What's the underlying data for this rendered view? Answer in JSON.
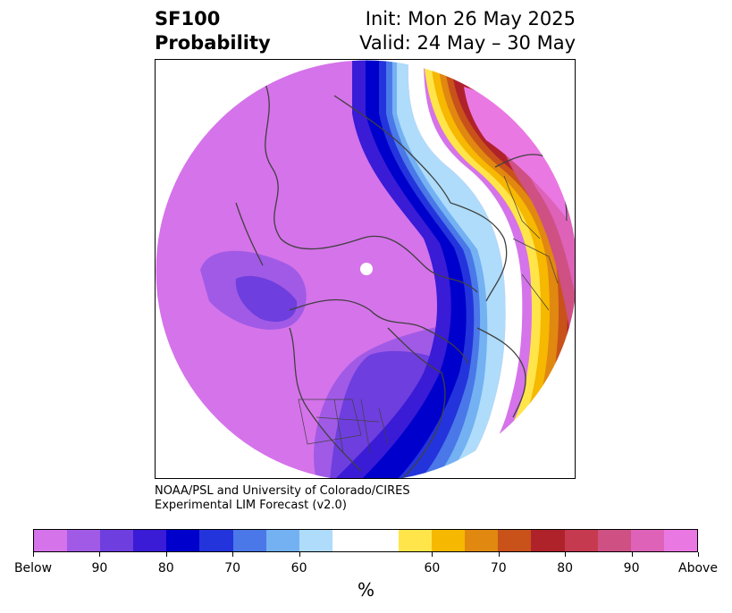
{
  "header": {
    "title_line1": "SF100",
    "title_line2": "Probability",
    "init": "Init: Mon 26 May 2025",
    "valid": "Valid: 24 May – 30 May"
  },
  "credit": {
    "line1": "NOAA/PSL and University of Colorado/CIRES",
    "line2": "Experimental LIM Forecast (v2.0)"
  },
  "colorbar": {
    "colors": [
      "#d573ea",
      "#a05ae6",
      "#6e3ede",
      "#3a1bd6",
      "#0000cc",
      "#2434dc",
      "#4a78e8",
      "#73b1f2",
      "#aedcfa",
      "#ffffff",
      "#ffffff",
      "#ffe54a",
      "#f6b800",
      "#e08810",
      "#c8521a",
      "#b0222a",
      "#c63a50",
      "#cf5083",
      "#de62b8",
      "#ea78e2"
    ],
    "tick_labels": [
      "Below",
      "90",
      "80",
      "70",
      "60",
      "60",
      "70",
      "80",
      "90",
      "Above"
    ],
    "unit": "%"
  },
  "map": {
    "projection": "north polar stereographic",
    "features": [
      "coastlines",
      "country borders",
      "US state borders"
    ],
    "pattern": "below-normal probabilities over the Arctic, Pacific and North America; above-normal band over Europe and the eastern Atlantic"
  }
}
